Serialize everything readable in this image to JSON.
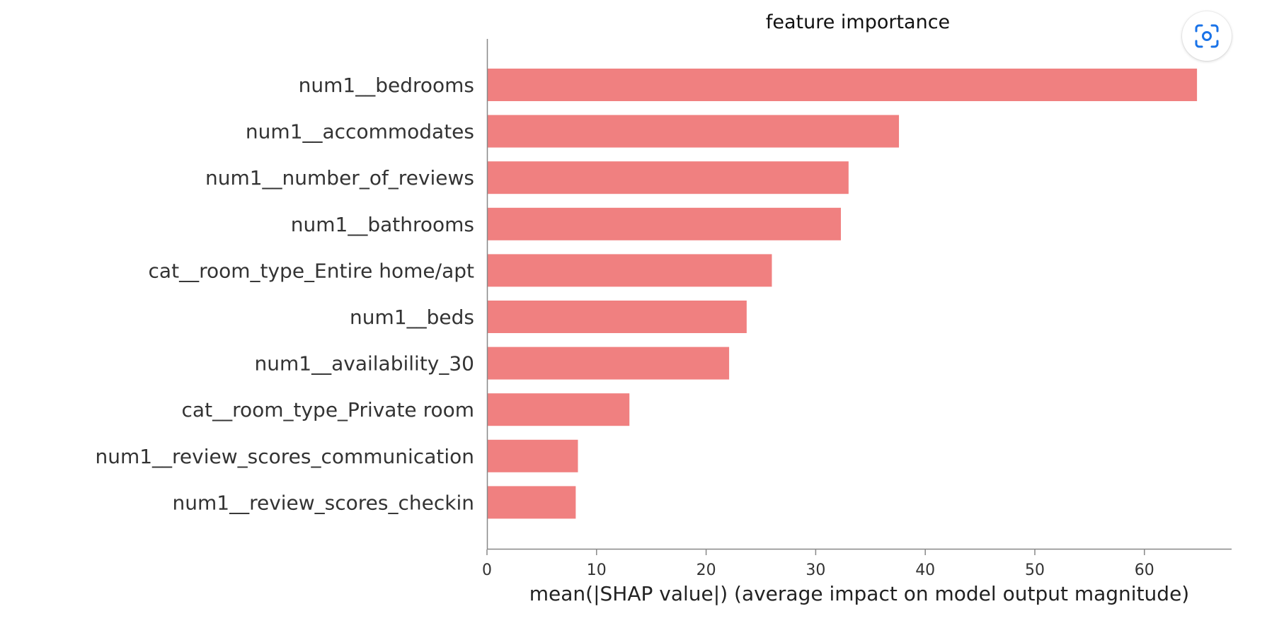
{
  "chart_data": {
    "type": "bar",
    "orientation": "horizontal",
    "title": "feature importance",
    "xlabel": "mean(|SHAP value|) (average impact on model output magnitude)",
    "ylabel": "",
    "xlim": [
      0,
      68
    ],
    "x_ticks": [
      0,
      10,
      20,
      30,
      40,
      50,
      60
    ],
    "grid": false,
    "legend": "none",
    "bar_color": "#f08080",
    "axis_color": "#888888",
    "label_color": "#333333",
    "categories": [
      "num1__bedrooms",
      "num1__accommodates",
      "num1__number_of_reviews",
      "num1__bathrooms",
      "cat__room_type_Entire home/apt",
      "num1__beds",
      "num1__availability_30",
      "cat__room_type_Private room",
      "num1__review_scores_communication",
      "num1__review_scores_checkin"
    ],
    "values": [
      64.8,
      37.6,
      33.0,
      32.3,
      26.0,
      23.7,
      22.1,
      13.0,
      8.3,
      8.1
    ]
  },
  "overlay": {
    "lens_icon": "google-lens-icon",
    "accent": "#1a73e8"
  }
}
